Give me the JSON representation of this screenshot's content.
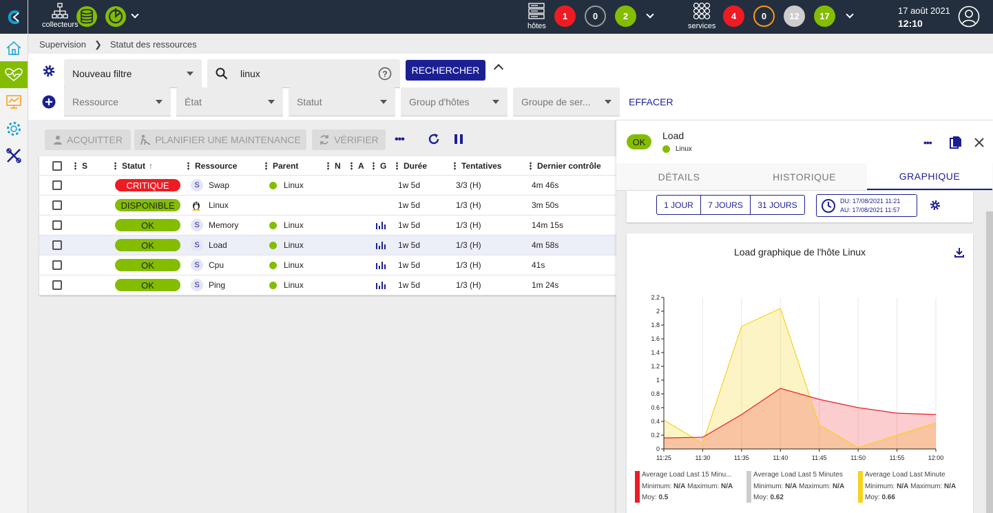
{
  "topbar": {
    "pollers_label": "collecteurs",
    "hosts_label": "hôtes",
    "services_label": "services",
    "hosts_counts": [
      "1",
      "0",
      "2"
    ],
    "services_counts": [
      "4",
      "0",
      "12",
      "17"
    ],
    "date": "17 août 2021",
    "time": "12:10"
  },
  "breadcrumb": [
    "Supervision",
    "Statut des ressources"
  ],
  "filters": {
    "filter_name": "Nouveau filtre",
    "search_value": "linux",
    "search_button": "RECHERCHER",
    "clear_button": "EFFACER",
    "selects": [
      "Ressource",
      "État",
      "Statut",
      "Group d'hôtes",
      "Groupe de ser..."
    ]
  },
  "actions": {
    "ack": "ACQUITTER",
    "downtime": "PLANIFIER UNE MAINTENANCE",
    "check": "VÉRIFIER"
  },
  "table": {
    "headers": {
      "s": "S",
      "status": "Statut",
      "resource": "Ressource",
      "parent": "Parent",
      "n": "N",
      "a": "A",
      "g": "G",
      "duration": "Durée",
      "tries": "Tentatives",
      "last_check": "Dernier contrôle"
    },
    "rows": [
      {
        "status": "CRITIQUE",
        "badge": "S",
        "resource": "Swap",
        "parent": "Linux",
        "duration": "1w 5d",
        "tries": "3/3 (H)",
        "last_check": "4m 46s"
      },
      {
        "status": "DISPONIBLE",
        "badge": "",
        "resource": "Linux",
        "parent": "",
        "duration": "1w 5d",
        "tries": "1/3 (H)",
        "last_check": "3m 50s"
      },
      {
        "status": "OK",
        "badge": "S",
        "resource": "Memory",
        "parent": "Linux",
        "duration": "1w 5d",
        "tries": "1/3 (H)",
        "last_check": "14m 15s"
      },
      {
        "status": "OK",
        "badge": "S",
        "resource": "Load",
        "parent": "Linux",
        "duration": "1w 5d",
        "tries": "1/3 (H)",
        "last_check": "4m 58s"
      },
      {
        "status": "OK",
        "badge": "S",
        "resource": "Cpu",
        "parent": "Linux",
        "duration": "1w 5d",
        "tries": "1/3 (H)",
        "last_check": "41s"
      },
      {
        "status": "OK",
        "badge": "S",
        "resource": "Ping",
        "parent": "Linux",
        "duration": "1w 5d",
        "tries": "1/3 (H)",
        "last_check": "1m 24s"
      }
    ]
  },
  "panel": {
    "status": "OK",
    "title": "Load",
    "host": "Linux",
    "tabs": [
      "DÉTAILS",
      "HISTORIQUE",
      "GRAPHIQUE"
    ],
    "periods": [
      "1 JOUR",
      "7 JOURS",
      "31 JOURS"
    ],
    "from": "DU:  17/08/2021 11:21",
    "to": "AU:  17/08/2021 11:57"
  },
  "colors": {
    "accent": "#1b1f94",
    "ok": "#84bd00",
    "critical": "#ed1c24",
    "topbar": "#232f3e"
  },
  "chart_data": {
    "type": "area",
    "title": "Load graphique de l'hôte Linux",
    "x": [
      "11:25",
      "11:30",
      "11:35",
      "11:40",
      "11:45",
      "11:50",
      "11:55",
      "12:00"
    ],
    "ylim": [
      0,
      2.2
    ],
    "yticks": [
      "0",
      "0.2",
      "0.4",
      "0.6",
      "0.8",
      "1",
      "1.2",
      "1.4",
      "1.6",
      "1.8",
      "2",
      "2.2"
    ],
    "series": [
      {
        "name": "Average Load Last 15 Minu...",
        "color": "#ed1c24",
        "x": [
          0,
          5,
          10,
          15,
          20,
          25,
          30,
          35
        ],
        "values": [
          0.16,
          0.17,
          0.5,
          0.88,
          0.72,
          0.6,
          0.52,
          0.5
        ],
        "min": "N/A",
        "max": "N/A",
        "avg": "0.5"
      },
      {
        "name": "Average Load Last 5 Minutes",
        "color": "#cdcdcd",
        "x": [],
        "values": [],
        "min": "N/A",
        "max": "N/A",
        "avg": "0.62"
      },
      {
        "name": "Average Load Last Minute",
        "color": "#f7d21b",
        "x": [
          0,
          5,
          10,
          15,
          20,
          25,
          30,
          35
        ],
        "values": [
          0.42,
          0.08,
          1.78,
          2.04,
          0.35,
          0.02,
          0.2,
          0.38
        ],
        "min": "N/A",
        "max": "N/A",
        "avg": "0.66"
      }
    ],
    "labels": {
      "minimum": "Minimum:",
      "maximum": "Maximum:",
      "avg": "Moy:"
    }
  }
}
